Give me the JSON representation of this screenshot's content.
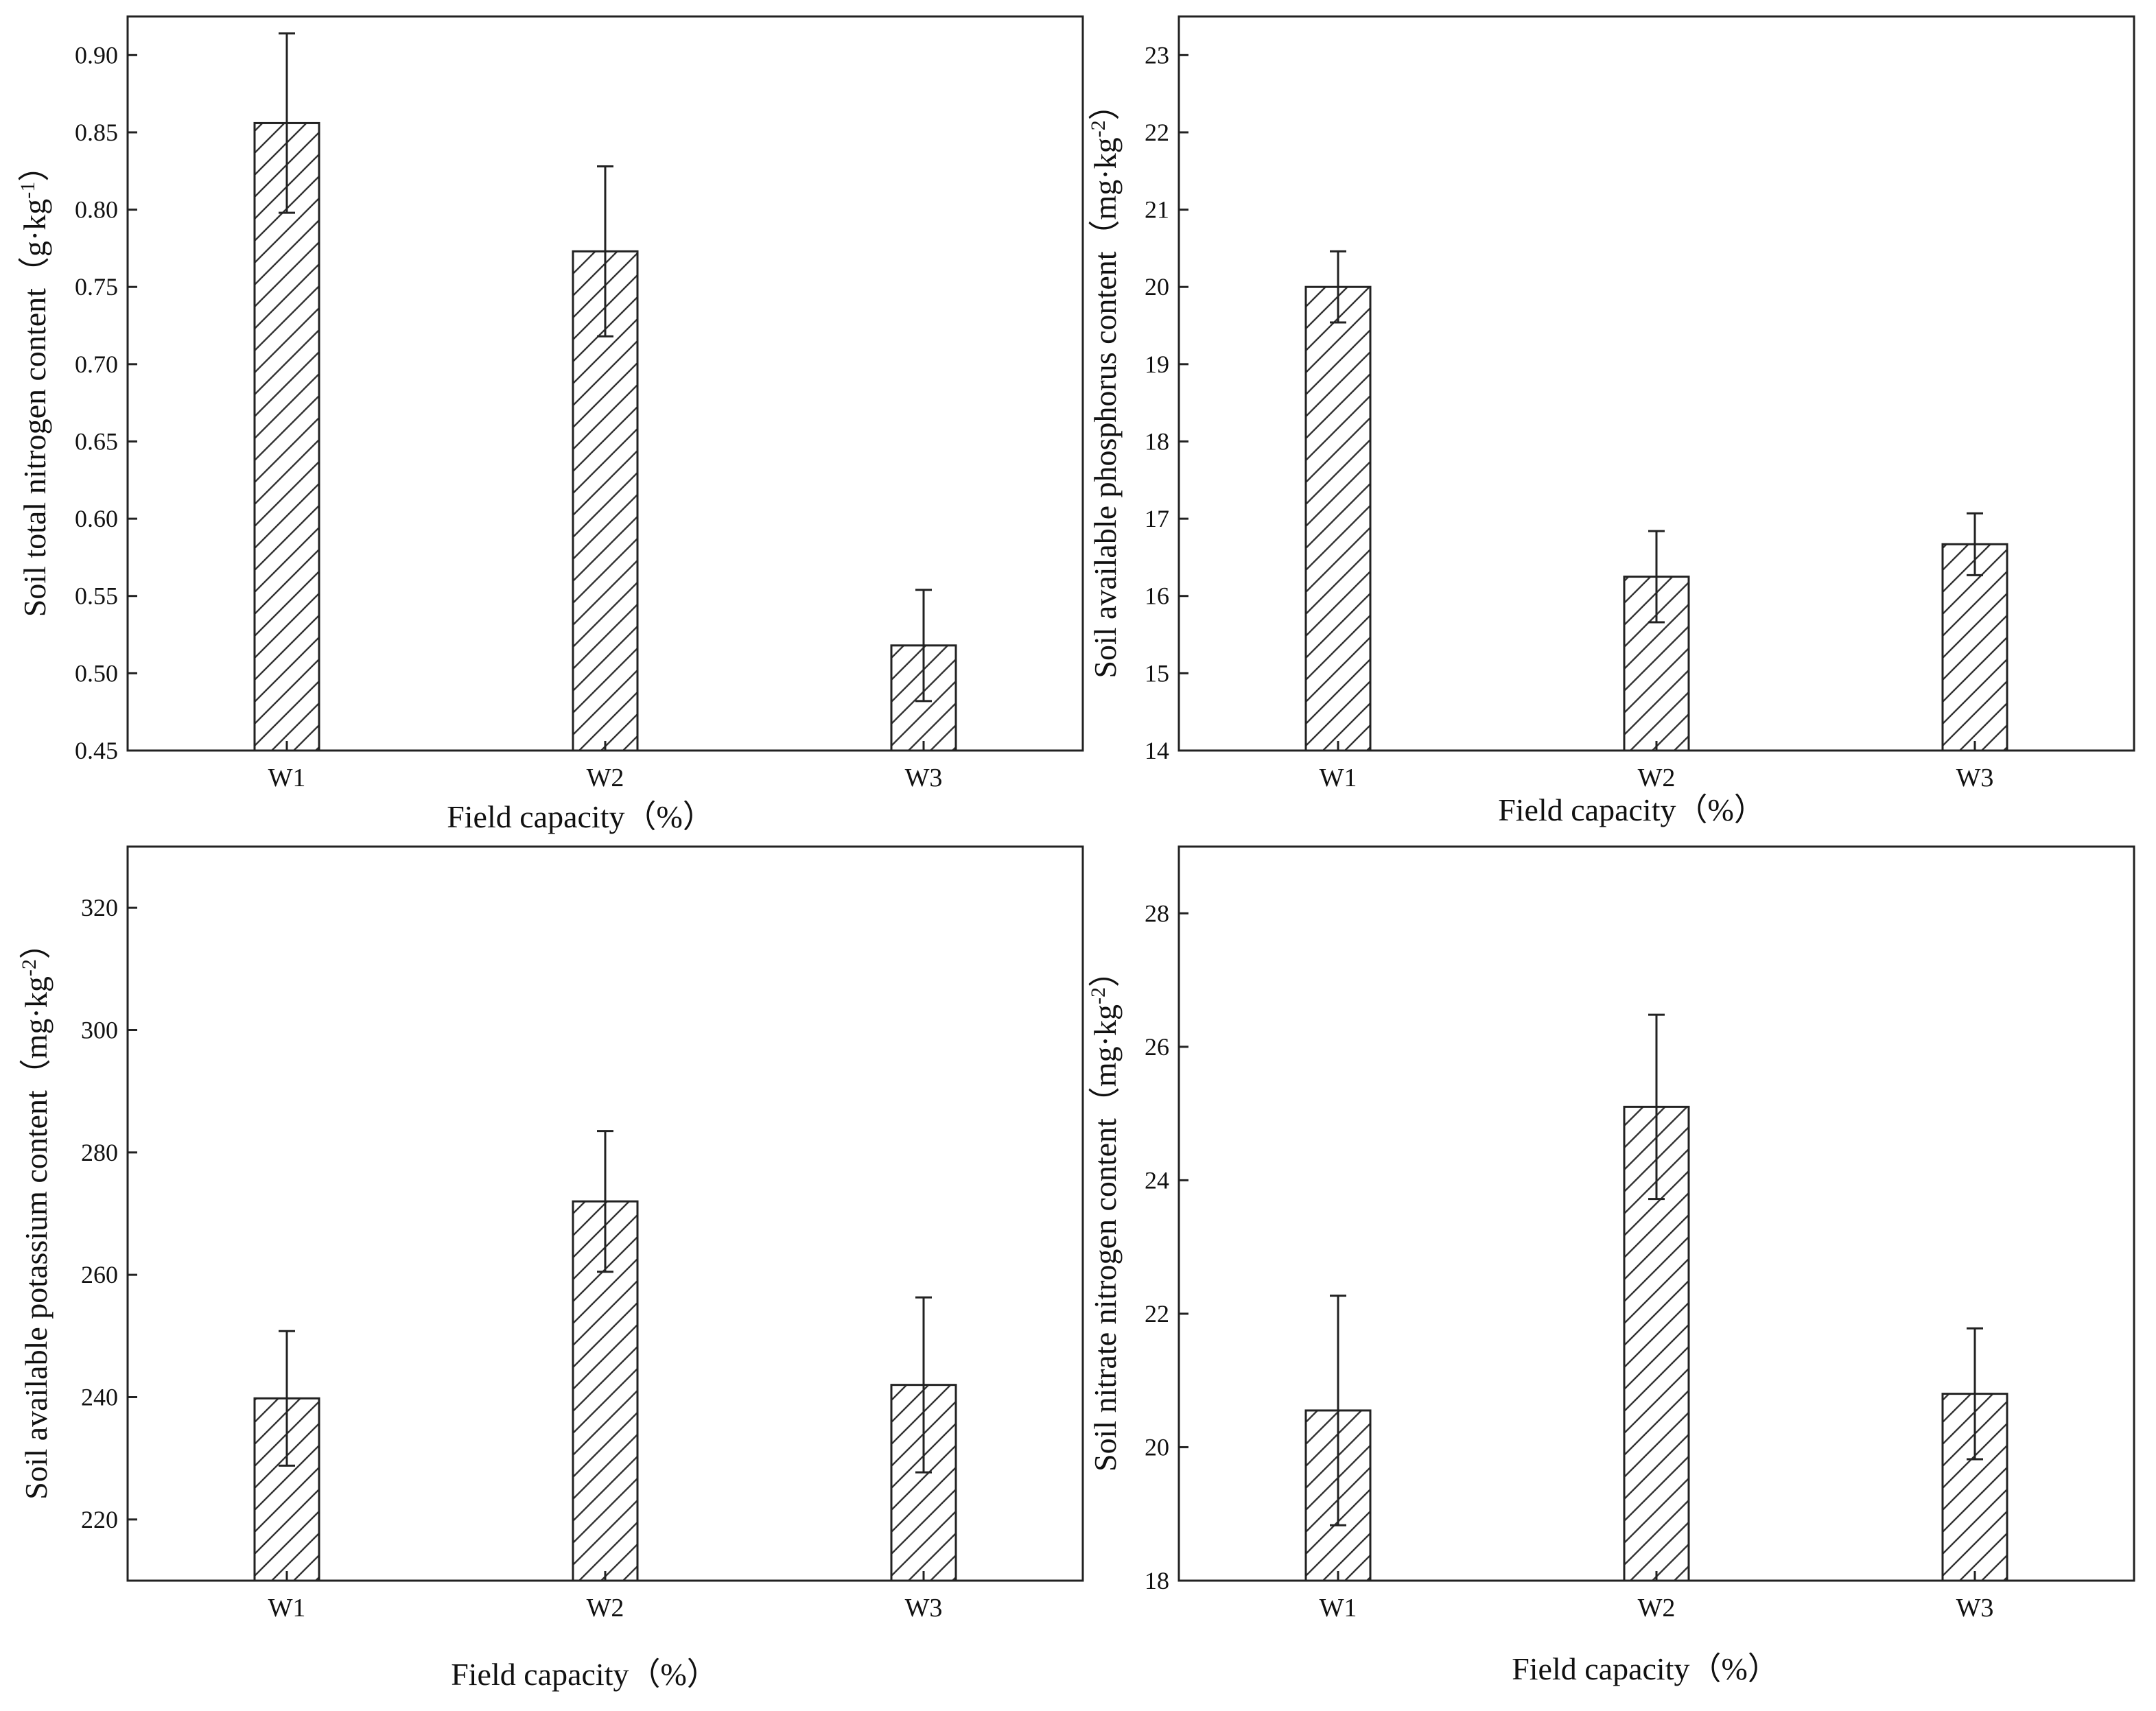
{
  "figure": {
    "bar_fill_pattern": "diagonal-hatch",
    "colors": {
      "line": "#222222",
      "background": "#ffffff"
    }
  },
  "chart_data": [
    {
      "id": "nitrogen",
      "type": "bar",
      "title": "",
      "categories": [
        "W1",
        "W2",
        "W3"
      ],
      "values": [
        0.856,
        0.773,
        0.518
      ],
      "errors": [
        0.058,
        0.055,
        0.036
      ],
      "xlabel": "Field capacity（%）",
      "ylabel_main": "Soil total nitrogen content（g·kg",
      "ylabel_sup": "-1",
      "ylabel_end": "）",
      "ylim": [
        0.45,
        0.925
      ],
      "yticks": [
        "0.45",
        "0.50",
        "0.55",
        "0.60",
        "0.65",
        "0.70",
        "0.75",
        "0.80",
        "0.85",
        "0.90"
      ],
      "grid": false
    },
    {
      "id": "phosphorus",
      "type": "bar",
      "title": "",
      "categories": [
        "W1",
        "W2",
        "W3"
      ],
      "values": [
        20.0,
        16.25,
        16.67
      ],
      "errors": [
        0.46,
        0.59,
        0.4
      ],
      "xlabel": "Field capacity（%）",
      "ylabel_main": "Soil available phosphorus content（mg·kg",
      "ylabel_sup": "-2",
      "ylabel_end": "）",
      "ylim": [
        14,
        23.5
      ],
      "yticks": [
        "14",
        "15",
        "16",
        "17",
        "18",
        "19",
        "20",
        "21",
        "22",
        "23"
      ],
      "grid": false
    },
    {
      "id": "potassium",
      "type": "bar",
      "title": "",
      "categories": [
        "W1",
        "W2",
        "W3"
      ],
      "values": [
        239.8,
        272.0,
        242.0
      ],
      "errors": [
        11.0,
        11.5,
        14.3
      ],
      "xlabel": "Field capacity（%）",
      "ylabel_main": "Soil available potassium content（mg·kg",
      "ylabel_sup": "-2",
      "ylabel_end": "）",
      "ylim": [
        210,
        330
      ],
      "yticks": [
        "220",
        "240",
        "260",
        "280",
        "300",
        "320"
      ],
      "grid": false
    },
    {
      "id": "nitrate",
      "type": "bar",
      "title": "",
      "categories": [
        "W1",
        "W2",
        "W3"
      ],
      "values": [
        20.55,
        25.1,
        20.8
      ],
      "errors": [
        1.72,
        1.38,
        0.98
      ],
      "xlabel": "Field capacity（%）",
      "ylabel_main": "Soil nitrate nitrogen content（mg·kg",
      "ylabel_sup": "-2",
      "ylabel_end": "）",
      "ylim": [
        18,
        29
      ],
      "yticks": [
        "18",
        "20",
        "22",
        "24",
        "26",
        "28"
      ],
      "grid": false
    }
  ]
}
